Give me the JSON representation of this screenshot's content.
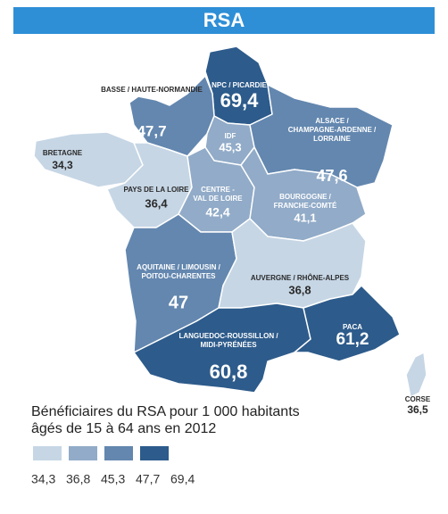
{
  "title": "RSA",
  "regions": [
    {
      "name": [
        "NPC / PICARDIE"
      ],
      "value": 69.4,
      "label": "69,4"
    },
    {
      "name": [
        "BASSE / HAUTE-NORMANDIE"
      ],
      "value": 47.7,
      "label": "47,7"
    },
    {
      "name": [
        "IDF"
      ],
      "value": 45.3,
      "label": "45,3"
    },
    {
      "name": [
        "ALSACE /",
        "CHAMPAGNE-ARDENNE /",
        "LORRAINE"
      ],
      "value": 47.6,
      "label": "47,6"
    },
    {
      "name": [
        "BRETAGNE"
      ],
      "value": 34.3,
      "label": "34,3"
    },
    {
      "name": [
        "PAYS DE LA LOIRE"
      ],
      "value": 36.4,
      "label": "36,4"
    },
    {
      "name": [
        "CENTRE -",
        "VAL DE LOIRE"
      ],
      "value": 42.4,
      "label": "42,4"
    },
    {
      "name": [
        "BOURGOGNE /",
        "FRANCHE-COMTÉ"
      ],
      "value": 41.1,
      "label": "41,1"
    },
    {
      "name": [
        "AQUITAINE / LIMOUSIN /",
        "POITOU-CHARENTES"
      ],
      "value": 47,
      "label": "47"
    },
    {
      "name": [
        "AUVERGNE / RHÔNE-ALPES"
      ],
      "value": 36.8,
      "label": "36,8"
    },
    {
      "name": [
        "LANGUEDOC-ROUSSILLON /",
        "MIDI-PYRÉNÉES"
      ],
      "value": 60.8,
      "label": "60,8"
    },
    {
      "name": [
        "PACA"
      ],
      "value": 61.2,
      "label": "61,2"
    },
    {
      "name": [
        "CORSE"
      ],
      "value": 36.5,
      "label": "36,5"
    }
  ],
  "legend": {
    "caption": [
      "Bénéficiaires du RSA pour 1 000 habitants",
      "âgés de 15 à 64 ans en 2012"
    ],
    "breaks": [
      {
        "value": 34.3,
        "label": "34,3"
      },
      {
        "value": 36.8,
        "label": "36,8"
      },
      {
        "value": 45.3,
        "label": "45,3"
      },
      {
        "value": 47.7,
        "label": "47,7"
      },
      {
        "value": 69.4,
        "label": "69,4"
      }
    ],
    "colors": [
      "#c6d6e5",
      "#91abc8",
      "#6387af",
      "#2d5b8b"
    ]
  }
}
